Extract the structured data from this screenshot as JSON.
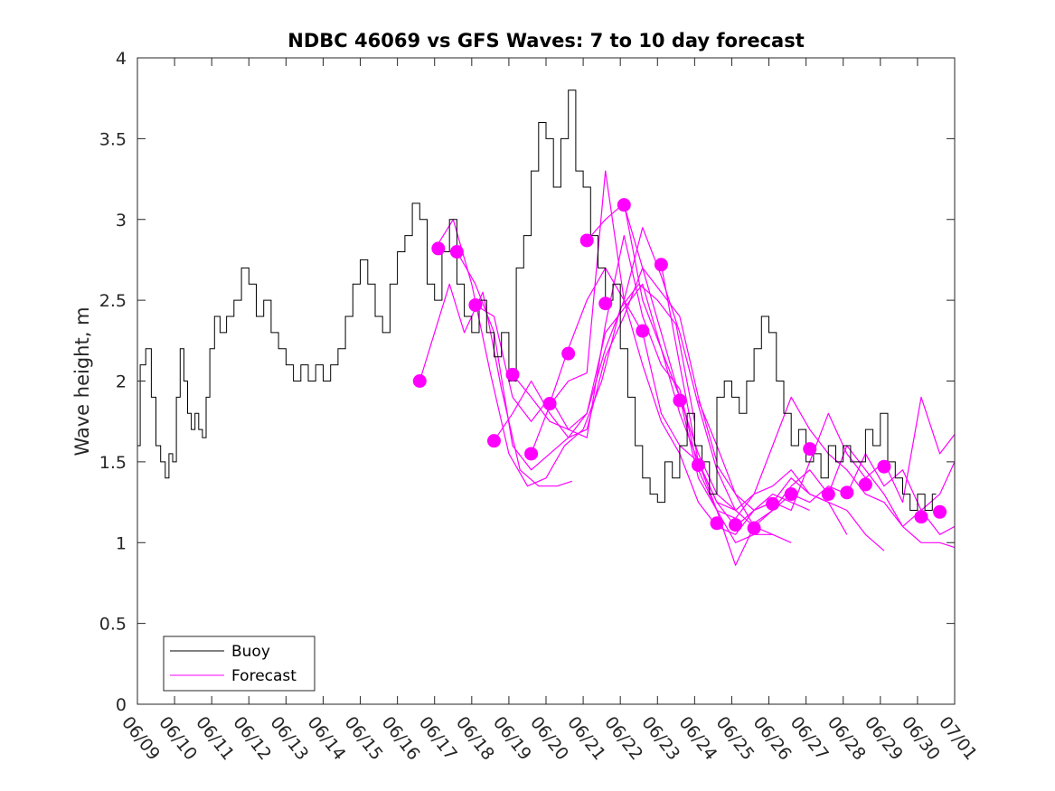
{
  "chart_data": {
    "type": "line",
    "title": "NDBC 46069 vs GFS Waves: 7 to 10 day forecast",
    "ylabel": "Wave height, m",
    "xlabel": "",
    "xlim": [
      0,
      22
    ],
    "ylim": [
      0,
      4
    ],
    "x_ticks": [
      0,
      1,
      2,
      3,
      4,
      5,
      6,
      7,
      8,
      9,
      10,
      11,
      12,
      13,
      14,
      15,
      16,
      17,
      18,
      19,
      20,
      21,
      22
    ],
    "x_tick_labels": [
      "06/09",
      "06/10",
      "06/11",
      "06/12",
      "06/13",
      "06/14",
      "06/15",
      "06/16",
      "06/17",
      "06/18",
      "06/19",
      "06/20",
      "06/21",
      "06/22",
      "06/23",
      "06/24",
      "06/25",
      "06/26",
      "06/27",
      "06/28",
      "06/29",
      "06/30",
      "07/01"
    ],
    "y_ticks": [
      0,
      0.5,
      1,
      1.5,
      2,
      2.5,
      3,
      3.5,
      4
    ],
    "y_tick_labels": [
      "0",
      "0.5",
      "1",
      "1.5",
      "2",
      "2.5",
      "3",
      "3.5",
      "4"
    ],
    "grid": false,
    "legend_position": "bottom-left",
    "colors": {
      "buoy": "#000000",
      "forecast": "#ff00ff"
    },
    "series": [
      {
        "name": "Buoy",
        "style": "line",
        "x": [
          0,
          0.15,
          0.3,
          0.45,
          0.55,
          0.7,
          0.8,
          0.9,
          1.0,
          1.1,
          1.2,
          1.3,
          1.4,
          1.5,
          1.6,
          1.7,
          1.8,
          1.9,
          2.0,
          2.15,
          2.3,
          2.5,
          2.7,
          2.9,
          3.1,
          3.3,
          3.5,
          3.7,
          3.9,
          4.1,
          4.3,
          4.5,
          4.7,
          4.9,
          5.1,
          5.3,
          5.5,
          5.7,
          5.9,
          6.1,
          6.3,
          6.5,
          6.7,
          6.9,
          7.1,
          7.3,
          7.5,
          7.7,
          7.9,
          8.1,
          8.3,
          8.5,
          8.7,
          8.9,
          9.1,
          9.3,
          9.5,
          9.7,
          9.9,
          10.1,
          10.3,
          10.5,
          10.7,
          10.9,
          11.1,
          11.3,
          11.5,
          11.7,
          11.9,
          12.1,
          12.3,
          12.5,
          12.7,
          12.9,
          13.1,
          13.3,
          13.5,
          13.7,
          13.9,
          14.1,
          14.3,
          14.5,
          14.7,
          14.9,
          15.1,
          15.3,
          15.5,
          15.7,
          15.9,
          16.1,
          16.3,
          16.5,
          16.7,
          16.9,
          17.1,
          17.3,
          17.5,
          17.7,
          17.9,
          18.1,
          18.3,
          18.5,
          18.7,
          18.9,
          19.1,
          19.3,
          19.5,
          19.7,
          19.9,
          20.1,
          20.3,
          20.5,
          20.7,
          20.9,
          21.1,
          21.3,
          21.5
        ],
        "y": [
          1.6,
          2.1,
          2.2,
          1.9,
          1.6,
          1.5,
          1.4,
          1.55,
          1.5,
          1.9,
          2.2,
          2.0,
          1.8,
          1.7,
          1.8,
          1.7,
          1.65,
          1.9,
          2.2,
          2.4,
          2.3,
          2.4,
          2.5,
          2.7,
          2.6,
          2.4,
          2.5,
          2.3,
          2.2,
          2.1,
          2.0,
          2.1,
          2.0,
          2.1,
          2.0,
          2.1,
          2.2,
          2.4,
          2.6,
          2.75,
          2.6,
          2.4,
          2.3,
          2.6,
          2.8,
          2.9,
          3.1,
          3.0,
          2.6,
          2.5,
          2.8,
          3.0,
          2.6,
          2.4,
          2.3,
          2.5,
          2.3,
          2.15,
          2.3,
          2.0,
          2.7,
          2.9,
          3.3,
          3.6,
          3.5,
          3.2,
          3.5,
          3.8,
          3.3,
          3.2,
          2.9,
          2.7,
          2.5,
          2.6,
          2.2,
          1.9,
          1.6,
          1.4,
          1.3,
          1.25,
          1.5,
          1.4,
          1.6,
          1.8,
          1.6,
          1.5,
          1.3,
          1.9,
          2.0,
          1.9,
          1.8,
          2.0,
          2.2,
          2.4,
          2.3,
          2.0,
          1.8,
          1.6,
          1.7,
          1.5,
          1.55,
          1.4,
          1.6,
          1.5,
          1.6,
          1.5,
          1.5,
          1.7,
          1.6,
          1.8,
          1.5,
          1.4,
          1.3,
          1.2,
          1.3,
          1.2,
          1.3
        ]
      },
      {
        "name": "Forecast",
        "style": "line",
        "runs": [
          {
            "x": [
              7.6,
              8.0,
              8.4,
              8.8,
              9.3,
              9.8,
              10.3,
              10.8,
              11.3,
              11.7
            ],
            "y": [
              2.0,
              2.3,
              2.6,
              2.3,
              2.55,
              1.95,
              1.45,
              1.35,
              1.35,
              1.38
            ]
          },
          {
            "x": [
              8.1,
              8.5,
              9.0,
              9.5,
              10.0,
              10.5,
              11.0,
              11.5,
              12.0,
              12.5,
              13.0,
              13.5,
              14.0,
              14.5,
              15.0
            ],
            "y": [
              2.85,
              3.0,
              2.6,
              2.05,
              1.55,
              1.35,
              1.4,
              1.6,
              1.7,
              2.0,
              2.45,
              2.6,
              2.5,
              2.35,
              1.75
            ]
          },
          {
            "x": [
              8.6,
              9.1,
              9.6,
              10.1,
              10.6,
              11.1,
              11.6,
              12.1,
              12.6,
              13.1,
              13.6,
              14.1,
              14.6,
              15.1,
              15.6
            ],
            "y": [
              2.8,
              2.6,
              2.3,
              1.6,
              1.45,
              1.55,
              1.65,
              1.7,
              2.15,
              2.4,
              2.7,
              2.55,
              2.4,
              1.9,
              1.5
            ]
          },
          {
            "x": [
              9.1,
              9.6,
              10.1,
              10.6,
              11.1,
              11.6,
              12.1,
              12.6,
              13.1,
              13.6,
              14.1,
              14.6,
              15.1,
              15.6,
              16.1
            ],
            "y": [
              2.47,
              2.4,
              1.9,
              1.75,
              1.9,
              1.7,
              1.8,
              2.2,
              2.5,
              2.95,
              2.65,
              2.3,
              1.85,
              1.45,
              1.2
            ]
          },
          {
            "x": [
              9.6,
              10.1,
              10.6,
              11.1,
              11.6,
              12.1,
              12.6,
              13.1,
              13.6,
              14.1,
              14.6,
              15.1,
              15.6,
              16.1,
              16.6
            ],
            "y": [
              1.63,
              1.8,
              2.0,
              1.8,
              1.65,
              1.8,
              2.3,
              2.45,
              2.6,
              2.2,
              1.9,
              1.55,
              1.3,
              1.2,
              1.1
            ]
          },
          {
            "x": [
              10.1,
              10.6,
              11.1,
              11.6,
              12.1,
              12.6,
              13.1,
              13.6,
              14.1,
              14.6,
              15.1,
              15.6,
              16.1,
              16.6,
              17.1
            ],
            "y": [
              2.04,
              1.9,
              1.75,
              1.7,
              1.65,
              2.35,
              2.9,
              2.4,
              2.1,
              1.95,
              1.45,
              1.2,
              1.0,
              1.05,
              1.05
            ]
          },
          {
            "x": [
              10.6,
              11.1,
              11.6,
              12.1,
              12.6,
              13.1,
              13.6,
              14.1,
              14.6,
              15.1,
              15.6,
              16.1,
              16.6,
              17.1,
              17.6
            ],
            "y": [
              1.55,
              1.85,
              2.0,
              2.05,
              3.3,
              2.5,
              2.3,
              1.8,
              1.6,
              1.5,
              1.2,
              0.86,
              1.1,
              1.05,
              1.0
            ]
          },
          {
            "x": [
              11.1,
              11.6,
              12.1,
              12.6,
              13.1,
              13.6,
              14.1,
              14.6,
              15.1,
              15.6,
              16.1,
              16.6,
              17.1,
              17.6,
              18.1
            ],
            "y": [
              1.86,
              2.2,
              2.5,
              2.7,
              2.5,
              2.1,
              1.75,
              1.55,
              1.25,
              1.1,
              1.05,
              1.2,
              1.3,
              1.25,
              1.2
            ]
          },
          {
            "x": [
              12.1,
              12.6,
              13.1,
              13.6,
              14.1,
              14.6,
              15.1,
              15.6,
              16.1,
              16.6,
              17.1,
              17.6,
              18.1,
              18.6,
              19.1
            ],
            "y": [
              2.87,
              3.0,
              3.1,
              2.5,
              2.2,
              1.8,
              1.5,
              1.25,
              1.1,
              1.2,
              1.25,
              1.4,
              1.3,
              1.25,
              1.05
            ]
          },
          {
            "x": [
              13.1,
              13.6,
              14.1,
              14.6,
              15.1,
              15.6,
              16.1,
              16.6,
              17.1,
              17.6,
              18.1,
              18.6,
              19.1,
              19.6,
              20.1
            ],
            "y": [
              3.09,
              2.7,
              2.3,
              1.9,
              1.4,
              1.2,
              1.15,
              1.3,
              1.35,
              1.45,
              1.3,
              1.25,
              1.2,
              1.05,
              0.95
            ]
          },
          {
            "x": [
              14.1,
              14.6,
              15.1,
              15.6,
              16.1,
              16.6,
              17.1,
              17.6,
              18.1,
              18.6,
              19.1,
              19.6,
              20.1,
              20.6,
              21.1,
              21.6,
              22.0
            ],
            "y": [
              2.72,
              2.1,
              1.5,
              1.25,
              1.2,
              1.3,
              1.6,
              1.9,
              1.7,
              1.55,
              1.45,
              1.3,
              1.25,
              1.1,
              1.2,
              1.3,
              1.5
            ]
          },
          {
            "x": [
              15.1,
              15.6,
              16.1,
              16.6,
              17.1,
              17.6,
              18.1,
              18.6,
              19.1,
              19.6,
              20.1,
              20.6,
              21.1,
              21.6,
              22.0
            ],
            "y": [
              1.88,
              1.6,
              1.3,
              1.2,
              1.25,
              1.2,
              1.5,
              1.8,
              1.55,
              1.4,
              1.5,
              1.25,
              1.9,
              1.55,
              1.67
            ]
          },
          {
            "x": [
              15.6,
              16.1,
              16.6,
              17.1,
              17.6,
              18.1,
              18.6,
              19.1,
              19.6,
              20.1,
              20.6,
              21.1,
              21.6,
              22.0
            ],
            "y": [
              1.48,
              1.3,
              1.1,
              1.2,
              1.35,
              1.45,
              1.3,
              1.6,
              1.45,
              1.3,
              1.1,
              1.0,
              1.0,
              0.97
            ]
          },
          {
            "x": [
              16.6,
              17.1,
              17.6,
              18.1,
              18.6,
              19.1,
              19.6,
              20.1,
              20.6,
              21.1,
              21.6,
              22.0
            ],
            "y": [
              1.12,
              1.2,
              1.3,
              1.25,
              1.35,
              1.3,
              1.55,
              1.35,
              1.45,
              1.2,
              1.05,
              1.1
            ]
          }
        ]
      },
      {
        "name": "Forecast",
        "style": "markers",
        "x": [
          7.6,
          8.1,
          8.6,
          9.1,
          9.6,
          10.1,
          10.6,
          11.1,
          11.6,
          12.1,
          12.6,
          13.1,
          13.6,
          14.1,
          14.6,
          15.1,
          15.6,
          16.1,
          16.6,
          17.1,
          17.6,
          18.1,
          18.6,
          19.1,
          19.6,
          20.1,
          21.1,
          21.6
        ],
        "y": [
          2.0,
          2.82,
          2.8,
          2.47,
          1.63,
          2.04,
          1.55,
          1.86,
          2.17,
          2.87,
          2.48,
          3.09,
          2.31,
          2.72,
          1.88,
          1.48,
          1.12,
          1.11,
          1.09,
          1.24,
          1.3,
          1.58,
          1.3,
          1.31,
          1.36,
          1.47,
          1.16,
          1.19
        ]
      }
    ]
  }
}
